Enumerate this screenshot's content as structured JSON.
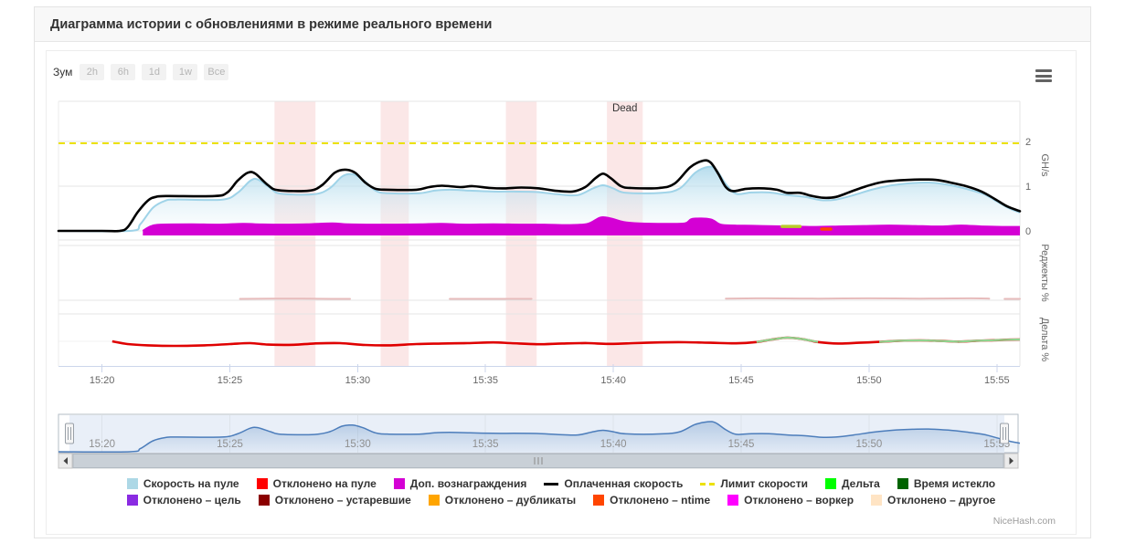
{
  "header": {
    "title": "Диаграмма истории с обновлениями в режиме реального времени"
  },
  "toolbar": {
    "zoom_label": "Зум",
    "buttons": [
      "2h",
      "6h",
      "1d",
      "1w",
      "Все"
    ]
  },
  "credits": "NiceHash.com",
  "chart_data": {
    "type": "line",
    "x_axis": {
      "min_minute": 918.3,
      "max_minute": 955.9,
      "ticks": [
        {
          "label": "15:20",
          "minute": 920
        },
        {
          "label": "15:25",
          "minute": 925
        },
        {
          "label": "15:30",
          "minute": 930
        },
        {
          "label": "15:35",
          "minute": 935
        },
        {
          "label": "15:40",
          "minute": 940
        },
        {
          "label": "15:45",
          "minute": 945
        },
        {
          "label": "15:50",
          "minute": 950
        },
        {
          "label": "15:55",
          "minute": 955
        }
      ]
    },
    "panels": [
      {
        "id": "speed",
        "title": "GH/s",
        "yticks": [
          {
            "label": "0",
            "value": 0
          },
          {
            "label": "1",
            "value": 1
          },
          {
            "label": "2",
            "value": 2
          }
        ]
      },
      {
        "id": "rejects",
        "title": "Реджекты %"
      },
      {
        "id": "delta",
        "title": "Дельта %"
      }
    ],
    "plot_bands": [
      {
        "from": 926.75,
        "to": 928.35,
        "label": ""
      },
      {
        "from": 930.9,
        "to": 932.0,
        "label": ""
      },
      {
        "from": 935.8,
        "to": 937.0,
        "label": ""
      },
      {
        "from": 939.75,
        "to": 941.15,
        "label": "Dead"
      }
    ],
    "speed_limit": {
      "name": "Лимит скорости",
      "value": 1.96,
      "color": "#ece100"
    },
    "series": [
      {
        "name": "Скорость на пуле",
        "panel": "speed",
        "type": "area",
        "color": "#ADD8E6",
        "points": [
          [
            918.3,
            0
          ],
          [
            921.1,
            0
          ],
          [
            921.5,
            0.15
          ],
          [
            922.0,
            0.52
          ],
          [
            922.5,
            0.68
          ],
          [
            922.9,
            0.7
          ],
          [
            924.7,
            0.7
          ],
          [
            925.3,
            0.85
          ],
          [
            925.8,
            1.12
          ],
          [
            926.1,
            1.15
          ],
          [
            926.6,
            0.95
          ],
          [
            927.0,
            0.83
          ],
          [
            928.3,
            0.82
          ],
          [
            928.9,
            0.95
          ],
          [
            929.4,
            1.22
          ],
          [
            929.8,
            1.27
          ],
          [
            930.2,
            1.15
          ],
          [
            930.7,
            0.9
          ],
          [
            931.2,
            0.84
          ],
          [
            932.4,
            0.84
          ],
          [
            933.0,
            0.9
          ],
          [
            933.6,
            0.92
          ],
          [
            934.4,
            0.9
          ],
          [
            935.3,
            0.88
          ],
          [
            936.1,
            0.88
          ],
          [
            937.0,
            0.87
          ],
          [
            937.8,
            0.82
          ],
          [
            938.6,
            0.8
          ],
          [
            939.2,
            0.95
          ],
          [
            939.6,
            1.02
          ],
          [
            940.0,
            0.95
          ],
          [
            940.5,
            0.85
          ],
          [
            941.9,
            0.85
          ],
          [
            942.6,
            0.95
          ],
          [
            943.2,
            1.3
          ],
          [
            943.7,
            1.43
          ],
          [
            944.0,
            1.38
          ],
          [
            944.4,
            1.05
          ],
          [
            944.8,
            0.83
          ],
          [
            945.4,
            0.86
          ],
          [
            946.1,
            0.86
          ],
          [
            946.8,
            0.8
          ],
          [
            947.5,
            0.76
          ],
          [
            948.1,
            0.69
          ],
          [
            948.7,
            0.7
          ],
          [
            949.4,
            0.8
          ],
          [
            950.1,
            0.92
          ],
          [
            950.9,
            1.02
          ],
          [
            951.7,
            1.07
          ],
          [
            952.4,
            1.08
          ],
          [
            953.1,
            1.03
          ],
          [
            953.8,
            0.94
          ],
          [
            954.5,
            0.82
          ],
          [
            955.0,
            0.66
          ],
          [
            955.5,
            0.5
          ],
          [
            955.9,
            0.41
          ]
        ]
      },
      {
        "name": "Доп. вознаграждения",
        "panel": "speed",
        "type": "area",
        "color": "#D400D4",
        "points": [
          [
            921.6,
            0
          ],
          [
            921.9,
            0.1
          ],
          [
            922.3,
            0.14
          ],
          [
            923.5,
            0.15
          ],
          [
            924.5,
            0.14
          ],
          [
            925.5,
            0.16
          ],
          [
            926.0,
            0.15
          ],
          [
            927.0,
            0.14
          ],
          [
            928.0,
            0.15
          ],
          [
            929.0,
            0.17
          ],
          [
            929.6,
            0.15
          ],
          [
            930.5,
            0.14
          ],
          [
            931.5,
            0.14
          ],
          [
            932.5,
            0.15
          ],
          [
            933.3,
            0.16
          ],
          [
            934.2,
            0.14
          ],
          [
            935.3,
            0.15
          ],
          [
            936.3,
            0.14
          ],
          [
            937.3,
            0.14
          ],
          [
            938.3,
            0.13
          ],
          [
            939.0,
            0.16
          ],
          [
            939.5,
            0.3
          ],
          [
            939.9,
            0.28
          ],
          [
            940.4,
            0.2
          ],
          [
            941.0,
            0.17
          ],
          [
            942.0,
            0.16
          ],
          [
            942.8,
            0.17
          ],
          [
            943.1,
            0.27
          ],
          [
            943.8,
            0.26
          ],
          [
            944.2,
            0.14
          ],
          [
            944.8,
            0.12
          ],
          [
            945.8,
            0.11
          ],
          [
            946.8,
            0.1
          ],
          [
            947.8,
            0.09
          ],
          [
            948.8,
            0.1
          ],
          [
            949.8,
            0.11
          ],
          [
            950.8,
            0.12
          ],
          [
            951.8,
            0.11
          ],
          [
            952.8,
            0.1
          ],
          [
            953.6,
            0.12
          ],
          [
            954.4,
            0.1
          ],
          [
            955.2,
            0.09
          ],
          [
            955.9,
            0.09
          ]
        ]
      },
      {
        "name": "Дельта",
        "panel": "speed",
        "type": "tick",
        "color": "#b8cc2a",
        "points": [
          [
            946.6,
            0.1
          ],
          [
            947.3,
            0.1
          ]
        ]
      },
      {
        "name": "Отклонено – ntime",
        "panel": "speed",
        "type": "tick",
        "color": "#FF4500",
        "points": [
          [
            948.15,
            0.04
          ],
          [
            948.5,
            0.04
          ]
        ]
      },
      {
        "name": "Оплаченная скорость",
        "panel": "speed",
        "type": "line",
        "color": "#000000",
        "points": [
          [
            918.3,
            0
          ],
          [
            920.0,
            0
          ],
          [
            920.7,
            0
          ],
          [
            921.0,
            0.08
          ],
          [
            921.4,
            0.42
          ],
          [
            921.8,
            0.68
          ],
          [
            922.1,
            0.76
          ],
          [
            922.5,
            0.78
          ],
          [
            924.4,
            0.78
          ],
          [
            924.9,
            0.86
          ],
          [
            925.3,
            1.12
          ],
          [
            925.7,
            1.3
          ],
          [
            926.0,
            1.28
          ],
          [
            926.5,
            1.02
          ],
          [
            926.9,
            0.91
          ],
          [
            928.1,
            0.9
          ],
          [
            928.6,
            1.02
          ],
          [
            929.1,
            1.3
          ],
          [
            929.5,
            1.37
          ],
          [
            929.9,
            1.3
          ],
          [
            930.3,
            1.08
          ],
          [
            930.7,
            0.94
          ],
          [
            931.2,
            0.92
          ],
          [
            932.3,
            0.92
          ],
          [
            932.8,
            0.98
          ],
          [
            933.3,
            1.01
          ],
          [
            934.0,
            0.98
          ],
          [
            934.5,
            1.0
          ],
          [
            935.2,
            0.96
          ],
          [
            935.8,
            0.95
          ],
          [
            936.4,
            0.97
          ],
          [
            937.1,
            0.95
          ],
          [
            937.7,
            0.9
          ],
          [
            938.4,
            0.88
          ],
          [
            938.9,
            0.98
          ],
          [
            939.3,
            1.18
          ],
          [
            939.6,
            1.28
          ],
          [
            939.9,
            1.18
          ],
          [
            940.3,
            1.0
          ],
          [
            940.7,
            0.96
          ],
          [
            941.8,
            0.96
          ],
          [
            942.4,
            1.06
          ],
          [
            943.0,
            1.42
          ],
          [
            943.5,
            1.57
          ],
          [
            943.8,
            1.53
          ],
          [
            944.1,
            1.28
          ],
          [
            944.4,
            0.98
          ],
          [
            944.7,
            0.89
          ],
          [
            945.2,
            0.94
          ],
          [
            945.9,
            0.95
          ],
          [
            946.4,
            0.92
          ],
          [
            946.8,
            0.85
          ],
          [
            947.3,
            0.85
          ],
          [
            947.7,
            0.79
          ],
          [
            948.2,
            0.74
          ],
          [
            948.7,
            0.76
          ],
          [
            949.3,
            0.88
          ],
          [
            949.9,
            1.0
          ],
          [
            950.5,
            1.09
          ],
          [
            951.2,
            1.13
          ],
          [
            952.0,
            1.15
          ],
          [
            952.6,
            1.14
          ],
          [
            953.2,
            1.08
          ],
          [
            953.8,
            1.0
          ],
          [
            954.4,
            0.88
          ],
          [
            954.9,
            0.72
          ],
          [
            955.4,
            0.55
          ],
          [
            955.9,
            0.44
          ]
        ]
      },
      {
        "name": "Отклонено на пуле",
        "panel": "rejects",
        "type": "multiline",
        "color": "#e7bcbc",
        "segments": [
          [
            [
              925.4,
              0.05
            ],
            [
              927.0,
              0.06
            ],
            [
              929.0,
              0.05
            ],
            [
              929.7,
              0.05
            ]
          ],
          [
            [
              933.6,
              0.05
            ],
            [
              935.0,
              0.05
            ],
            [
              936.8,
              0.05
            ]
          ],
          [
            [
              944.4,
              0.06
            ],
            [
              946.0,
              0.07
            ],
            [
              948.0,
              0.06
            ],
            [
              950.0,
              0.07
            ],
            [
              952.0,
              0.06
            ],
            [
              954.0,
              0.07
            ],
            [
              954.7,
              0.06
            ]
          ],
          [
            [
              955.3,
              0.05
            ],
            [
              955.9,
              0.05
            ]
          ]
        ]
      },
      {
        "name": "Дельта",
        "panel": "delta",
        "type": "signed-line",
        "colors": {
          "negative": "#df0000",
          "positive": "#8fd48f"
        },
        "points": [
          [
            920.4,
            0.0
          ],
          [
            921.0,
            -0.15
          ],
          [
            921.8,
            -0.22
          ],
          [
            922.8,
            -0.25
          ],
          [
            924.0,
            -0.22
          ],
          [
            925.0,
            -0.15
          ],
          [
            925.8,
            -0.1
          ],
          [
            926.5,
            -0.18
          ],
          [
            927.5,
            -0.19
          ],
          [
            928.3,
            -0.12
          ],
          [
            929.3,
            -0.1
          ],
          [
            930.3,
            -0.2
          ],
          [
            931.3,
            -0.22
          ],
          [
            932.3,
            -0.15
          ],
          [
            933.3,
            -0.12
          ],
          [
            934.3,
            -0.1
          ],
          [
            935.3,
            -0.06
          ],
          [
            936.0,
            -0.1
          ],
          [
            937.0,
            -0.16
          ],
          [
            938.0,
            -0.12
          ],
          [
            939.0,
            -0.1
          ],
          [
            939.8,
            -0.14
          ],
          [
            940.8,
            -0.1
          ],
          [
            941.8,
            -0.06
          ],
          [
            942.8,
            -0.05
          ],
          [
            943.8,
            -0.08
          ],
          [
            944.8,
            -0.11
          ],
          [
            945.6,
            -0.04
          ],
          [
            946.2,
            0.1
          ],
          [
            946.8,
            0.2
          ],
          [
            947.4,
            0.12
          ],
          [
            948.0,
            -0.04
          ],
          [
            948.8,
            -0.12
          ],
          [
            949.6,
            -0.08
          ],
          [
            950.4,
            -0.03
          ],
          [
            951.2,
            0.03
          ],
          [
            952.0,
            0.05
          ],
          [
            952.8,
            0.02
          ],
          [
            953.5,
            -0.02
          ],
          [
            954.2,
            0.03
          ],
          [
            954.9,
            0.06
          ],
          [
            955.5,
            0.09
          ],
          [
            955.9,
            0.1
          ]
        ]
      }
    ],
    "navigator": {
      "series_source": "Скорость на пуле"
    }
  },
  "legend": {
    "rows": [
      [
        {
          "label": "Скорость на пуле",
          "color": "#ADD8E6",
          "marker": "square"
        },
        {
          "label": "Отклонено на пуле",
          "color": "#FF0000",
          "marker": "square"
        },
        {
          "label": "Доп. вознаграждения",
          "color": "#D400D4",
          "marker": "square"
        },
        {
          "label": "Оплаченная скорость",
          "color": "#000000",
          "marker": "line"
        },
        {
          "label": "Лимит скорости",
          "color": "#ece100",
          "marker": "dash"
        },
        {
          "label": "Дельта",
          "color": "#00FF00",
          "marker": "square"
        },
        {
          "label": "Время истекло",
          "color": "#006400",
          "marker": "square"
        }
      ],
      [
        {
          "label": "Отклонено – цель",
          "color": "#8A2BE2",
          "marker": "square"
        },
        {
          "label": "Отклонено – устаревшие",
          "color": "#8B0000",
          "marker": "square"
        },
        {
          "label": "Отклонено – дубликаты",
          "color": "#FFA500",
          "marker": "square"
        },
        {
          "label": "Отклонено – ntime",
          "color": "#FF4500",
          "marker": "square"
        },
        {
          "label": "Отклонено – воркер",
          "color": "#FF00FF",
          "marker": "square"
        },
        {
          "label": "Отклонено – другое",
          "color": "#FFE4C4",
          "marker": "square"
        }
      ]
    ]
  }
}
